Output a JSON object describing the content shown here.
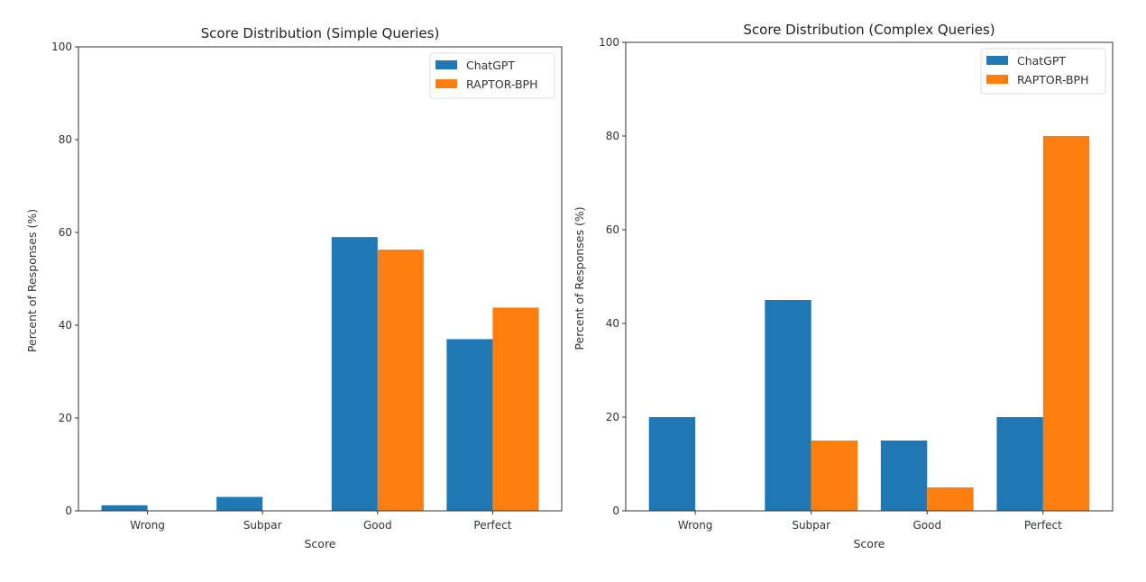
{
  "chart_data": [
    {
      "type": "bar",
      "title": "Score Distribution (Simple Queries)",
      "xlabel": "Score",
      "ylabel": "Percent of Responses (%)",
      "categories": [
        "Wrong",
        "Subpar",
        "Good",
        "Perfect"
      ],
      "ylim": [
        0,
        100
      ],
      "yticks": [
        "0",
        "20",
        "40",
        "60",
        "80",
        "100"
      ],
      "legend_position": "top-right",
      "series": [
        {
          "name": "ChatGPT",
          "color": "#1f77b4",
          "values": [
            1.2,
            3.0,
            59.0,
            37.0
          ]
        },
        {
          "name": "RAPTOR-BPH",
          "color": "#ff7f0e",
          "values": [
            0,
            0,
            56.3,
            43.8
          ]
        }
      ]
    },
    {
      "type": "bar",
      "title": "Score Distribution (Complex Queries)",
      "xlabel": "Score",
      "ylabel": "Percent of Responses (%)",
      "categories": [
        "Wrong",
        "Subpar",
        "Good",
        "Perfect"
      ],
      "ylim": [
        0,
        100
      ],
      "yticks": [
        "0",
        "20",
        "40",
        "60",
        "80",
        "100"
      ],
      "legend_position": "top-right",
      "series": [
        {
          "name": "ChatGPT",
          "color": "#1f77b4",
          "values": [
            20,
            45,
            15,
            20
          ]
        },
        {
          "name": "RAPTOR-BPH",
          "color": "#ff7f0e",
          "values": [
            0,
            15,
            5,
            80
          ]
        }
      ]
    }
  ]
}
